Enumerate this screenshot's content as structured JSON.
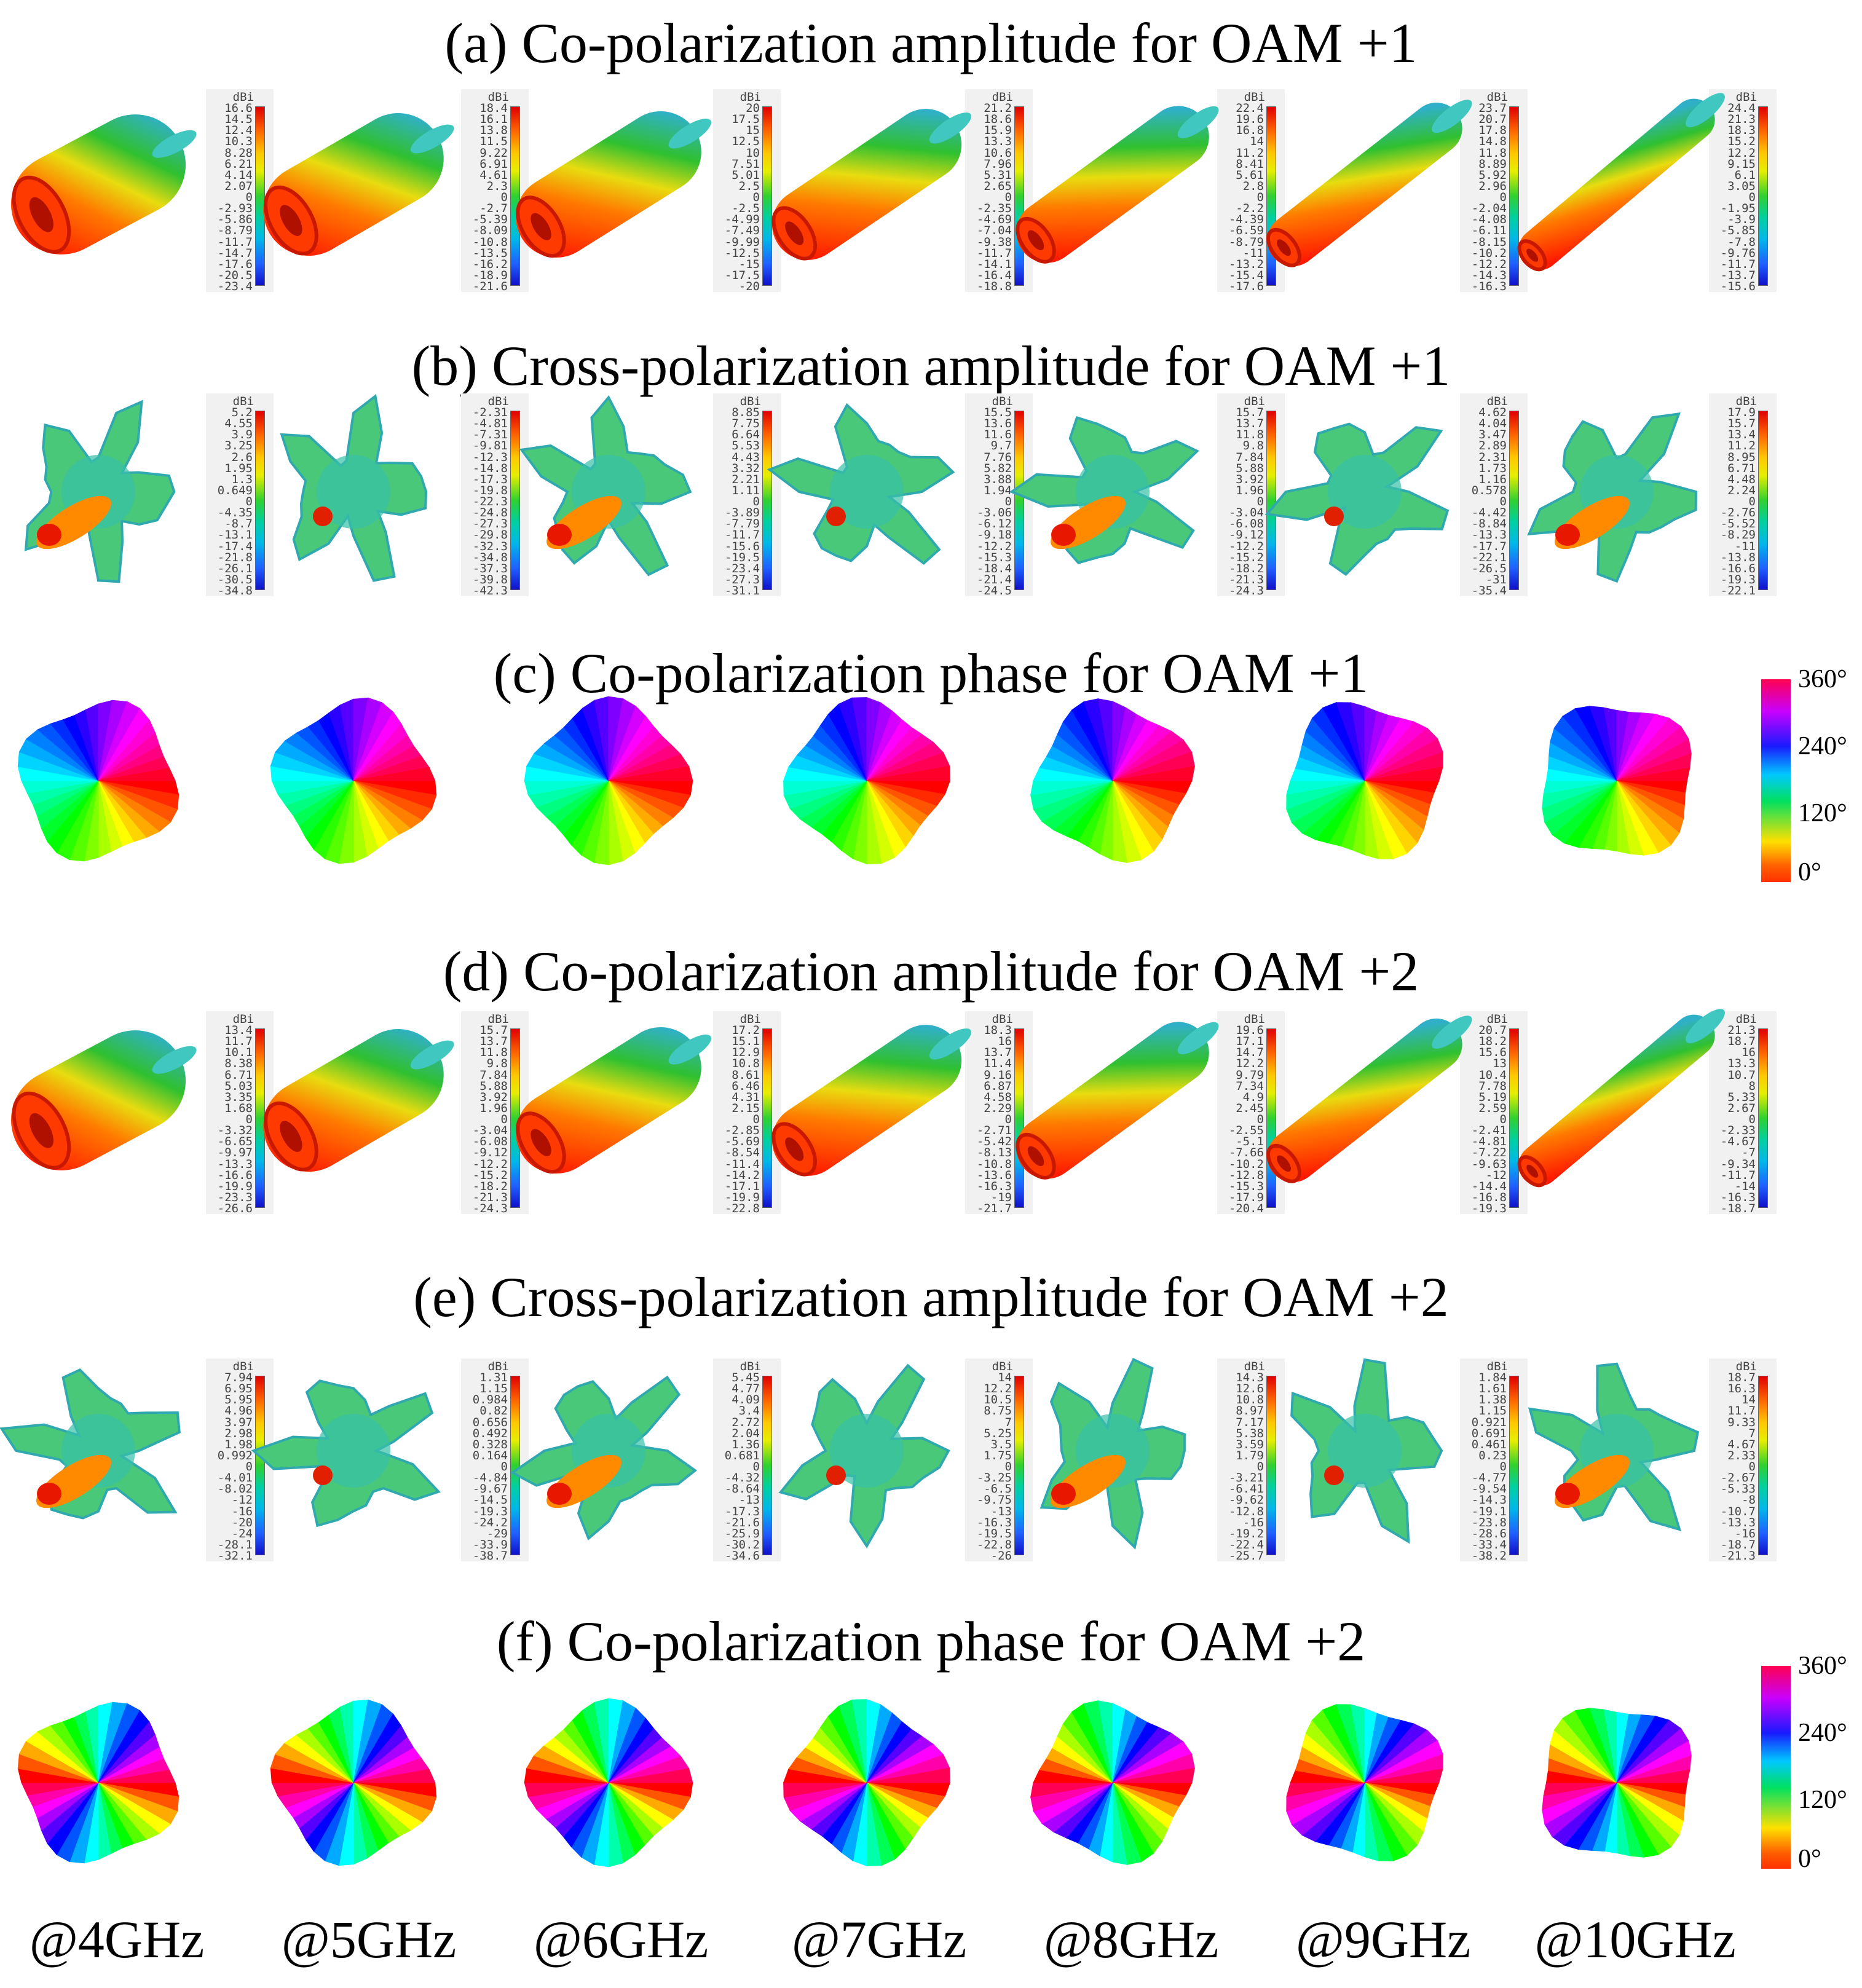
{
  "rows": [
    {
      "id": "a",
      "title": "(a) Co-polarization amplitude for OAM +1",
      "kind": "co-amp",
      "colorbars": [
        {
          "unit": "dBi",
          "ticks": [
            "16.6",
            "14.5",
            "12.4",
            "10.3",
            "8.28",
            "6.21",
            "4.14",
            "2.07",
            "0",
            "-2.93",
            "-5.86",
            "-8.79",
            "-11.7",
            "-14.7",
            "-17.6",
            "-20.5",
            "-23.4"
          ]
        },
        {
          "unit": "dBi",
          "ticks": [
            "18.4",
            "16.1",
            "13.8",
            "11.5",
            "9.22",
            "6.91",
            "4.61",
            "2.3",
            "0",
            "-2.7",
            "-5.39",
            "-8.09",
            "-10.8",
            "-13.5",
            "-16.2",
            "-18.9",
            "-21.6"
          ]
        },
        {
          "unit": "dBi",
          "ticks": [
            "20",
            "17.5",
            "15",
            "12.5",
            "10",
            "7.51",
            "5.01",
            "2.5",
            "0",
            "-2.5",
            "-4.99",
            "-7.49",
            "-9.99",
            "-12.5",
            "-15",
            "-17.5",
            "-20"
          ]
        },
        {
          "unit": "dBi",
          "ticks": [
            "21.2",
            "18.6",
            "15.9",
            "13.3",
            "10.6",
            "7.96",
            "5.31",
            "2.65",
            "0",
            "-2.35",
            "-4.69",
            "-7.04",
            "-9.38",
            "-11.7",
            "-14.1",
            "-16.4",
            "-18.8"
          ]
        },
        {
          "unit": "dBi",
          "ticks": [
            "22.4",
            "19.6",
            "16.8",
            "14",
            "11.2",
            "8.41",
            "5.61",
            "2.8",
            "0",
            "-2.2",
            "-4.39",
            "-6.59",
            "-8.79",
            "-11",
            "-13.2",
            "-15.4",
            "-17.6"
          ]
        },
        {
          "unit": "dBi",
          "ticks": [
            "23.7",
            "20.7",
            "17.8",
            "14.8",
            "11.8",
            "8.89",
            "5.92",
            "2.96",
            "0",
            "-2.04",
            "-4.08",
            "-6.11",
            "-8.15",
            "-10.2",
            "-12.2",
            "-14.3",
            "-16.3"
          ]
        },
        {
          "unit": "dBi",
          "ticks": [
            "24.4",
            "21.3",
            "18.3",
            "15.2",
            "12.2",
            "9.15",
            "6.1",
            "3.05",
            "0",
            "-1.95",
            "-3.9",
            "-5.85",
            "-7.8",
            "-9.76",
            "-11.7",
            "-13.7",
            "-15.6"
          ]
        }
      ]
    },
    {
      "id": "b",
      "title": "(b) Cross-polarization amplitude for OAM +1",
      "kind": "cross-amp",
      "colorbars": [
        {
          "unit": "dBi",
          "ticks": [
            "5.2",
            "4.55",
            "3.9",
            "3.25",
            "2.6",
            "1.95",
            "1.3",
            "0.649",
            "0",
            "-4.35",
            "-8.7",
            "-13.1",
            "-17.4",
            "-21.8",
            "-26.1",
            "-30.5",
            "-34.8"
          ]
        },
        {
          "unit": "dBi",
          "ticks": [
            "-2.31",
            "-4.81",
            "-7.31",
            "-9.81",
            "-12.3",
            "-14.8",
            "-17.3",
            "-19.8",
            "-22.3",
            "-24.8",
            "-27.3",
            "-29.8",
            "-32.3",
            "-34.8",
            "-37.3",
            "-39.8",
            "-42.3"
          ]
        },
        {
          "unit": "dBi",
          "ticks": [
            "8.85",
            "7.75",
            "6.64",
            "5.53",
            "4.43",
            "3.32",
            "2.21",
            "1.11",
            "0",
            "-3.89",
            "-7.79",
            "-11.7",
            "-15.6",
            "-19.5",
            "-23.4",
            "-27.3",
            "-31.1"
          ]
        },
        {
          "unit": "dBi",
          "ticks": [
            "15.5",
            "13.6",
            "11.6",
            "9.7",
            "7.76",
            "5.82",
            "3.88",
            "1.94",
            "0",
            "-3.06",
            "-6.12",
            "-9.18",
            "-12.2",
            "-15.3",
            "-18.4",
            "-21.4",
            "-24.5"
          ]
        },
        {
          "unit": "dBi",
          "ticks": [
            "15.7",
            "13.7",
            "11.8",
            "9.8",
            "7.84",
            "5.88",
            "3.92",
            "1.96",
            "0",
            "-3.04",
            "-6.08",
            "-9.12",
            "-12.2",
            "-15.2",
            "-18.2",
            "-21.3",
            "-24.3"
          ]
        },
        {
          "unit": "dBi",
          "ticks": [
            "4.62",
            "4.04",
            "3.47",
            "2.89",
            "2.31",
            "1.73",
            "1.16",
            "0.578",
            "0",
            "-4.42",
            "-8.84",
            "-13.3",
            "-17.7",
            "-22.1",
            "-26.5",
            "-31",
            "-35.4"
          ]
        },
        {
          "unit": "dBi",
          "ticks": [
            "17.9",
            "15.7",
            "13.4",
            "11.2",
            "8.95",
            "6.71",
            "4.48",
            "2.24",
            "0",
            "-2.76",
            "-5.52",
            "-8.29",
            "-11",
            "-13.8",
            "-16.6",
            "-19.3",
            "-22.1"
          ]
        }
      ]
    },
    {
      "id": "c",
      "title": "(c) Co-polarization phase for OAM +1",
      "kind": "phase",
      "charge": 1,
      "phase_scale": [
        "360°",
        "240°",
        "120°",
        "0°"
      ]
    },
    {
      "id": "d",
      "title": "(d) Co-polarization amplitude for OAM +2",
      "kind": "co-amp2",
      "colorbars": [
        {
          "unit": "dBi",
          "ticks": [
            "13.4",
            "11.7",
            "10.1",
            "8.38",
            "6.71",
            "5.03",
            "3.35",
            "1.68",
            "0",
            "-3.32",
            "-6.65",
            "-9.97",
            "-13.3",
            "-16.6",
            "-19.9",
            "-23.3",
            "-26.6"
          ]
        },
        {
          "unit": "dBi",
          "ticks": [
            "15.7",
            "13.7",
            "11.8",
            "9.8",
            "7.84",
            "5.88",
            "3.92",
            "1.96",
            "0",
            "-3.04",
            "-6.08",
            "-9.12",
            "-12.2",
            "-15.2",
            "-18.2",
            "-21.3",
            "-24.3"
          ]
        },
        {
          "unit": "dBi",
          "ticks": [
            "17.2",
            "15.1",
            "12.9",
            "10.8",
            "8.61",
            "6.46",
            "4.31",
            "2.15",
            "0",
            "-2.85",
            "-5.69",
            "-8.54",
            "-11.4",
            "-14.2",
            "-17.1",
            "-19.9",
            "-22.8"
          ]
        },
        {
          "unit": "dBi",
          "ticks": [
            "18.3",
            "16",
            "13.7",
            "11.4",
            "9.16",
            "6.87",
            "4.58",
            "2.29",
            "0",
            "-2.71",
            "-5.42",
            "-8.13",
            "-10.8",
            "-13.6",
            "-16.3",
            "-19",
            "-21.7"
          ]
        },
        {
          "unit": "dBi",
          "ticks": [
            "19.6",
            "17.1",
            "14.7",
            "12.2",
            "9.79",
            "7.34",
            "4.9",
            "2.45",
            "0",
            "-2.55",
            "-5.1",
            "-7.66",
            "-10.2",
            "-12.8",
            "-15.3",
            "-17.9",
            "-20.4"
          ]
        },
        {
          "unit": "dBi",
          "ticks": [
            "20.7",
            "18.2",
            "15.6",
            "13",
            "10.4",
            "7.78",
            "5.19",
            "2.59",
            "0",
            "-2.41",
            "-4.81",
            "-7.22",
            "-9.63",
            "-12",
            "-14.4",
            "-16.8",
            "-19.3"
          ]
        },
        {
          "unit": "dBi",
          "ticks": [
            "21.3",
            "18.7",
            "16",
            "13.3",
            "10.7",
            "8",
            "5.33",
            "2.67",
            "0",
            "-2.33",
            "-4.67",
            "-7",
            "-9.34",
            "-11.7",
            "-14",
            "-16.3",
            "-18.7"
          ]
        }
      ]
    },
    {
      "id": "e",
      "title": "(e) Cross-polarization amplitude for OAM +2",
      "kind": "cross-amp",
      "colorbars": [
        {
          "unit": "dBi",
          "ticks": [
            "7.94",
            "6.95",
            "5.95",
            "4.96",
            "3.97",
            "2.98",
            "1.98",
            "0.992",
            "0",
            "-4.01",
            "-8.02",
            "-12",
            "-16",
            "-20",
            "-24",
            "-28.1",
            "-32.1"
          ]
        },
        {
          "unit": "dBi",
          "ticks": [
            "1.31",
            "1.15",
            "0.984",
            "0.82",
            "0.656",
            "0.492",
            "0.328",
            "0.164",
            "0",
            "-4.84",
            "-9.67",
            "-14.5",
            "-19.3",
            "-24.2",
            "-29",
            "-33.9",
            "-38.7"
          ]
        },
        {
          "unit": "dBi",
          "ticks": [
            "5.45",
            "4.77",
            "4.09",
            "3.4",
            "2.72",
            "2.04",
            "1.36",
            "0.681",
            "0",
            "-4.32",
            "-8.64",
            "-13",
            "-17.3",
            "-21.6",
            "-25.9",
            "-30.2",
            "-34.6"
          ]
        },
        {
          "unit": "dBi",
          "ticks": [
            "14",
            "12.2",
            "10.5",
            "8.75",
            "7",
            "5.25",
            "3.5",
            "1.75",
            "0",
            "-3.25",
            "-6.5",
            "-9.75",
            "-13",
            "-16.3",
            "-19.5",
            "-22.8",
            "-26"
          ]
        },
        {
          "unit": "dBi",
          "ticks": [
            "14.3",
            "12.6",
            "10.8",
            "8.97",
            "7.17",
            "5.38",
            "3.59",
            "1.79",
            "0",
            "-3.21",
            "-6.41",
            "-9.62",
            "-12.8",
            "-16",
            "-19.2",
            "-22.4",
            "-25.7"
          ]
        },
        {
          "unit": "dBi",
          "ticks": [
            "1.84",
            "1.61",
            "1.38",
            "1.15",
            "0.921",
            "0.691",
            "0.461",
            "0.23",
            "0",
            "-4.77",
            "-9.54",
            "-14.3",
            "-19.1",
            "-23.8",
            "-28.6",
            "-33.4",
            "-38.2"
          ]
        },
        {
          "unit": "dBi",
          "ticks": [
            "18.7",
            "16.3",
            "14",
            "11.7",
            "9.33",
            "7",
            "4.67",
            "2.33",
            "0",
            "-2.67",
            "-5.33",
            "-8",
            "-10.7",
            "-13.3",
            "-16",
            "-18.7",
            "-21.3"
          ]
        }
      ]
    },
    {
      "id": "f",
      "title": "(f) Co-polarization phase for OAM +2",
      "kind": "phase",
      "charge": 2,
      "phase_scale": [
        "360°",
        "240°",
        "120°",
        "0°"
      ]
    }
  ],
  "frequencies": [
    "@4GHz",
    "@5GHz",
    "@6GHz",
    "@7GHz",
    "@8GHz",
    "@9GHz",
    "@10GHz"
  ]
}
